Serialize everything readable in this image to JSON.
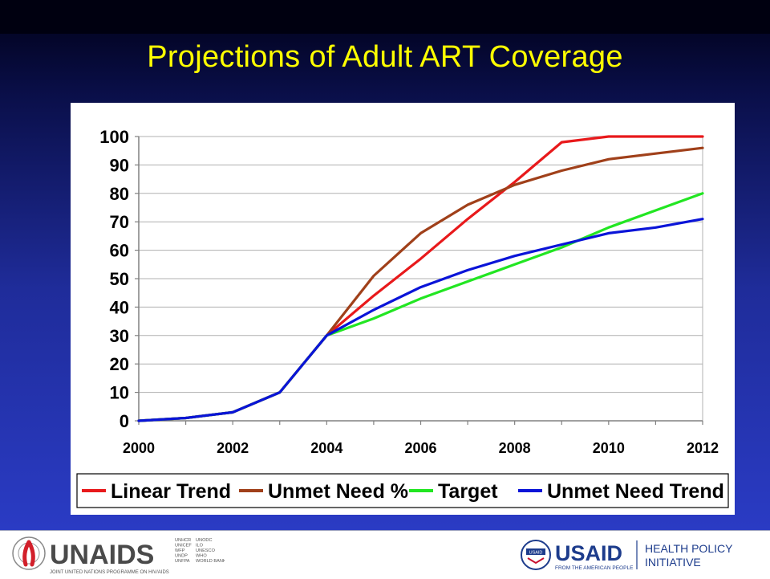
{
  "slide": {
    "title": "Projections of Adult ART Coverage"
  },
  "colors": {
    "title": "#ffff00",
    "linear_trend": "#e8191b",
    "unmet_need_pct": "#a0401a",
    "target": "#22e622",
    "unmet_need_trend": "#0a14d8"
  },
  "chart_data": {
    "type": "line",
    "title": "",
    "xlabel": "",
    "ylabel": "",
    "xlim": [
      2000,
      2012
    ],
    "ylim": [
      0,
      100
    ],
    "yticks": [
      0,
      10,
      20,
      30,
      40,
      50,
      60,
      70,
      80,
      90,
      100
    ],
    "xticks": [
      2000,
      2002,
      2004,
      2006,
      2008,
      2010,
      2012
    ],
    "grid": "horizontal",
    "legend_position": "bottom",
    "series": [
      {
        "name": "Linear Trend",
        "color": "#e8191b",
        "points": [
          [
            2000,
            0
          ],
          [
            2001,
            1
          ],
          [
            2002,
            3
          ],
          [
            2003,
            10
          ],
          [
            2004,
            30
          ],
          [
            2005,
            44
          ],
          [
            2006,
            57
          ],
          [
            2007,
            71
          ],
          [
            2008,
            84
          ],
          [
            2009,
            98
          ],
          [
            2010,
            100
          ],
          [
            2011,
            100
          ],
          [
            2012,
            100
          ]
        ]
      },
      {
        "name": "Unmet Need %",
        "color": "#a0401a",
        "points": [
          [
            2000,
            0
          ],
          [
            2001,
            1
          ],
          [
            2002,
            3
          ],
          [
            2003,
            10
          ],
          [
            2004,
            30
          ],
          [
            2005,
            51
          ],
          [
            2006,
            66
          ],
          [
            2007,
            76
          ],
          [
            2008,
            83
          ],
          [
            2009,
            88
          ],
          [
            2010,
            92
          ],
          [
            2011,
            94
          ],
          [
            2012,
            96
          ]
        ]
      },
      {
        "name": "Target",
        "color": "#22e622",
        "points": [
          [
            2000,
            0
          ],
          [
            2001,
            1
          ],
          [
            2002,
            3
          ],
          [
            2003,
            10
          ],
          [
            2004,
            30
          ],
          [
            2005,
            36
          ],
          [
            2006,
            43
          ],
          [
            2007,
            49
          ],
          [
            2008,
            55
          ],
          [
            2009,
            61
          ],
          [
            2010,
            68
          ],
          [
            2011,
            74
          ],
          [
            2012,
            80
          ]
        ]
      },
      {
        "name": "Unmet Need Trend",
        "color": "#0a14d8",
        "points": [
          [
            2000,
            0
          ],
          [
            2001,
            1
          ],
          [
            2002,
            3
          ],
          [
            2003,
            10
          ],
          [
            2004,
            30
          ],
          [
            2005,
            39
          ],
          [
            2006,
            47
          ],
          [
            2007,
            53
          ],
          [
            2008,
            58
          ],
          [
            2009,
            62
          ],
          [
            2010,
            66
          ],
          [
            2011,
            68
          ],
          [
            2012,
            71
          ]
        ]
      }
    ]
  },
  "footer": {
    "unaids": {
      "wordmark": "UNAIDS",
      "tagline": "JOINT UNITED NATIONS PROGRAMME ON HIV/AIDS",
      "cosponsors_col1": [
        "UNHCR",
        "UNICEF",
        "WFP",
        "UNDP",
        "UNFPA"
      ],
      "cosponsors_col2": [
        "UNODC",
        "ILO",
        "UNESCO",
        "WHO",
        "WORLD BANK"
      ]
    },
    "usaid": {
      "wordmark": "USAID",
      "tagline": "FROM THE AMERICAN PEOPLE",
      "program_line1": "HEALTH POLICY",
      "program_line2": "INITIATIVE",
      "seal_text": "USAID"
    }
  }
}
